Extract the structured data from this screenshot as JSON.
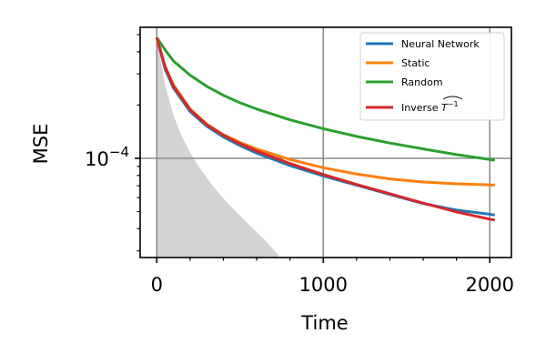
{
  "chart_data": {
    "type": "line",
    "xlabel": "Time",
    "ylabel": "MSE",
    "yscale": "log",
    "xlim": [
      -100,
      2130
    ],
    "ylim": [
      2.75e-05,
      0.00055
    ],
    "xticks": [
      0,
      1000,
      2000
    ],
    "xtick_labels": [
      "0",
      "1000",
      "2000"
    ],
    "ytick_label_base": "10",
    "ytick_label_exp": "−4",
    "grid": true,
    "legend_position": "top-right",
    "series": [
      {
        "name": "Neural Network",
        "color": "#1f77b4",
        "x": [
          0,
          50,
          100,
          200,
          300,
          400,
          500,
          600,
          800,
          1000,
          1200,
          1400,
          1600,
          1800,
          2000,
          2030
        ],
        "y": [
          0.00048,
          0.00032,
          0.00025,
          0.000184,
          0.000152,
          0.000132,
          0.000118,
          0.000107,
          9.1e-05,
          7.95e-05,
          7.05e-05,
          6.25e-05,
          5.55e-05,
          5.1e-05,
          4.83e-05,
          4.78e-05
        ]
      },
      {
        "name": "Static",
        "color": "#ff7f0e",
        "x": [
          0,
          50,
          100,
          200,
          300,
          400,
          500,
          600,
          800,
          1000,
          1200,
          1400,
          1600,
          1800,
          2000,
          2030
        ],
        "y": [
          0.00048,
          0.00033,
          0.00026,
          0.00019,
          0.000156,
          0.000136,
          0.000123,
          0.000113,
          9.85e-05,
          8.85e-05,
          8.15e-05,
          7.65e-05,
          7.35e-05,
          7.18e-05,
          7.08e-05,
          7.06e-05
        ]
      },
      {
        "name": "Random",
        "color": "#2ca02c",
        "x": [
          0,
          50,
          100,
          200,
          300,
          400,
          500,
          600,
          800,
          1000,
          1200,
          1400,
          1600,
          1800,
          2000,
          2030
        ],
        "y": [
          0.00048,
          0.00041,
          0.000355,
          0.000295,
          0.000255,
          0.000227,
          0.000206,
          0.00019,
          0.000165,
          0.000147,
          0.000133,
          0.000122,
          0.000113,
          0.000105,
          9.85e-05,
          9.75e-05
        ]
      },
      {
        "name": "Inverse $\\widehat{T^{-1}}$",
        "color": "#d62728",
        "x": [
          0,
          50,
          100,
          200,
          300,
          400,
          500,
          600,
          800,
          1000,
          1200,
          1400,
          1600,
          1800,
          2000,
          2030
        ],
        "y": [
          0.00048,
          0.00033,
          0.000255,
          0.000188,
          0.000155,
          0.000135,
          0.000121,
          0.00011,
          9.35e-05,
          8.1e-05,
          7.12e-05,
          6.3e-05,
          5.58e-05,
          4.98e-05,
          4.53e-05,
          4.48e-05
        ]
      }
    ],
    "shaded_region": {
      "color": "#d3d3d3",
      "x": [
        0,
        50,
        100,
        150,
        200,
        250,
        300,
        350,
        400,
        450,
        500,
        550,
        600,
        650,
        700,
        730
      ],
      "y": [
        0.00048,
        0.00026,
        0.000175,
        0.000133,
        0.000108,
        9.05e-05,
        7.75e-05,
        6.75e-05,
        5.95e-05,
        5.3e-05,
        4.75e-05,
        4.25e-05,
        3.83e-05,
        3.45e-05,
        3.05e-05,
        2.85e-05
      ]
    }
  }
}
